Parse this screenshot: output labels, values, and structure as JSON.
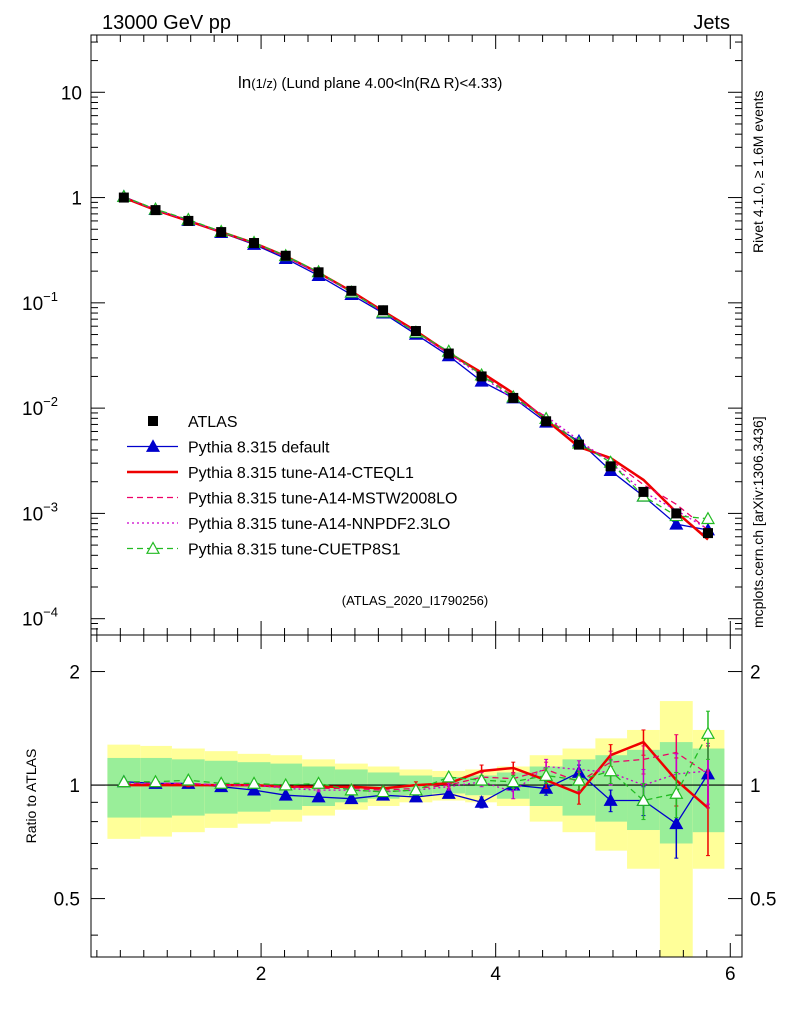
{
  "header": {
    "left": "13000 GeV pp",
    "right": "Jets"
  },
  "side_labels": {
    "rivet": "Rivet 4.1.0, ≥ 1.6M events",
    "mcplots": "mcplots.cern.ch [arXiv:1306.3436]"
  },
  "colors": {
    "atlas": "#000000",
    "default": "#0000cc",
    "a14_cteql1": "#ee0000",
    "a14_mstw": "#ee0066",
    "a14_nnpdf": "#cc00cc",
    "cuetp8s1": "#22bb22",
    "band_inner": "#99ee99",
    "band_outer": "#ffff99"
  },
  "chart_data": {
    "type": "line",
    "title_main": "ln",
    "title_sub": "(1/z)",
    "title_rest": " (Lund plane 4.00<ln(RΔ R)<4.33)",
    "watermark": "(ATLAS_2020_I1790256)",
    "ylabel_ratio": "Ratio to ATLAS",
    "xlim": [
      0.55,
      6.1
    ],
    "ylim_main": [
      7e-05,
      35
    ],
    "ylim_ratio": [
      0.35,
      2.5
    ],
    "x_ticks": [
      "2",
      "4",
      "6"
    ],
    "y_ticks_main": [
      {
        "base": "10",
        "exp": "",
        "value": 10
      },
      {
        "base": "1",
        "exp": "",
        "value": 1
      },
      {
        "base": "10",
        "exp": "−1",
        "value": 0.1
      },
      {
        "base": "10",
        "exp": "−2",
        "value": 0.01
      },
      {
        "base": "10",
        "exp": "−3",
        "value": 0.001
      },
      {
        "base": "10",
        "exp": "−4",
        "value": 0.0001
      }
    ],
    "y_ticks_ratio": [
      {
        "label": "2",
        "value": 2
      },
      {
        "label": "1",
        "value": 1
      },
      {
        "label": "0.5",
        "value": 0.5
      }
    ],
    "x": [
      0.83,
      1.1,
      1.38,
      1.66,
      1.94,
      2.21,
      2.49,
      2.77,
      3.04,
      3.32,
      3.6,
      3.88,
      4.15,
      4.43,
      4.71,
      4.98,
      5.26,
      5.54,
      5.81
    ],
    "bins": [
      0.69,
      0.97,
      1.24,
      1.52,
      1.8,
      2.08,
      2.35,
      2.63,
      2.91,
      3.18,
      3.46,
      3.74,
      4.01,
      4.29,
      4.57,
      4.85,
      5.12,
      5.4,
      5.68,
      5.95
    ],
    "atlas": [
      1.0,
      0.76,
      0.6,
      0.47,
      0.37,
      0.28,
      0.195,
      0.13,
      0.085,
      0.054,
      0.033,
      0.02,
      0.0125,
      0.0075,
      0.0045,
      0.0028,
      0.0016,
      0.001,
      0.00065
    ],
    "band_inner": [
      0.18,
      0.18,
      0.17,
      0.16,
      0.15,
      0.14,
      0.12,
      0.1,
      0.08,
      0.06,
      0.05,
      0.06,
      0.08,
      0.12,
      0.17,
      0.2,
      0.24,
      0.3,
      0.25
    ],
    "band_outer": [
      0.28,
      0.27,
      0.25,
      0.23,
      0.21,
      0.2,
      0.17,
      0.14,
      0.12,
      0.1,
      0.09,
      0.1,
      0.12,
      0.2,
      0.25,
      0.33,
      0.4,
      0.67,
      0.4
    ],
    "legend": [
      {
        "key": "atlas",
        "label": "ATLAS"
      },
      {
        "key": "default",
        "label": "Pythia 8.315 default"
      },
      {
        "key": "a14_cteql1",
        "label": "Pythia 8.315 tune-A14-CTEQL1"
      },
      {
        "key": "a14_mstw",
        "label": "Pythia 8.315 tune-A14-MSTW2008LO"
      },
      {
        "key": "a14_nnpdf",
        "label": "Pythia 8.315 tune-A14-NNPDF2.3LO"
      },
      {
        "key": "cuetp8s1",
        "label": "Pythia 8.315 tune-CUETP8S1"
      }
    ],
    "series": [
      {
        "key": "default",
        "name": "Pythia 8.315 default",
        "style": "solid",
        "marker": "triangle-filled",
        "ratio": [
          1.02,
          1.01,
          1.01,
          0.99,
          0.97,
          0.94,
          0.93,
          0.92,
          0.94,
          0.93,
          0.95,
          0.9,
          1.0,
          0.98,
          1.08,
          0.91,
          0.91,
          0.79,
          1.07
        ],
        "err": [
          0.01,
          0.01,
          0.01,
          0.01,
          0.01,
          0.01,
          0.01,
          0.01,
          0.01,
          0.02,
          0.02,
          0.03,
          0.03,
          0.04,
          0.05,
          0.06,
          0.08,
          0.15,
          0.2
        ]
      },
      {
        "key": "a14_cteql1",
        "name": "Pythia 8.315 tune-A14-CTEQL1",
        "style": "solid-thick",
        "marker": "none",
        "ratio": [
          1.0,
          1.0,
          1.0,
          1.0,
          1.0,
          0.99,
          0.99,
          0.99,
          0.98,
          1.0,
          1.01,
          1.09,
          1.11,
          1.03,
          0.95,
          1.2,
          1.3,
          1.03,
          0.87
        ],
        "err": [
          0.01,
          0.01,
          0.01,
          0.01,
          0.01,
          0.01,
          0.01,
          0.01,
          0.01,
          0.02,
          0.02,
          0.04,
          0.04,
          0.05,
          0.06,
          0.08,
          0.1,
          0.15,
          0.22
        ]
      },
      {
        "key": "a14_mstw",
        "name": "Pythia 8.315 tune-A14-MSTW2008LO",
        "style": "dashed",
        "marker": "none",
        "ratio": [
          1.01,
          1.01,
          1.01,
          1.0,
          1.0,
          0.99,
          0.98,
          0.98,
          0.97,
          0.98,
          1.0,
          1.05,
          1.04,
          1.1,
          1.02,
          1.15,
          1.17,
          1.22,
          1.07
        ],
        "err": [
          0.01,
          0.01,
          0.01,
          0.01,
          0.01,
          0.01,
          0.01,
          0.01,
          0.01,
          0.02,
          0.02,
          0.03,
          0.04,
          0.05,
          0.06,
          0.08,
          0.1,
          0.14,
          0.2
        ]
      },
      {
        "key": "a14_nnpdf",
        "name": "Pythia 8.315 tune-A14-NNPDF2.3LO",
        "style": "dotted",
        "marker": "none",
        "ratio": [
          1.01,
          1.01,
          1.01,
          1.0,
          1.0,
          0.98,
          0.97,
          0.97,
          0.96,
          0.97,
          0.99,
          1.02,
          0.96,
          1.12,
          1.1,
          1.08,
          1.0,
          1.07,
          1.09
        ],
        "err": [
          0.01,
          0.01,
          0.01,
          0.01,
          0.01,
          0.01,
          0.01,
          0.01,
          0.01,
          0.02,
          0.02,
          0.03,
          0.04,
          0.05,
          0.06,
          0.08,
          0.1,
          0.14,
          0.2
        ]
      },
      {
        "key": "cuetp8s1",
        "name": "Pythia 8.315 tune-CUETP8S1",
        "style": "dashed",
        "marker": "triangle-open",
        "ratio": [
          1.02,
          1.02,
          1.03,
          1.01,
          1.01,
          1.0,
          1.01,
          0.97,
          0.96,
          0.97,
          1.05,
          1.03,
          1.02,
          1.06,
          1.03,
          1.09,
          0.91,
          0.95,
          1.37
        ],
        "err": [
          0.01,
          0.01,
          0.01,
          0.01,
          0.01,
          0.01,
          0.01,
          0.01,
          0.01,
          0.02,
          0.02,
          0.03,
          0.04,
          0.05,
          0.06,
          0.08,
          0.1,
          0.13,
          0.2
        ]
      }
    ]
  }
}
